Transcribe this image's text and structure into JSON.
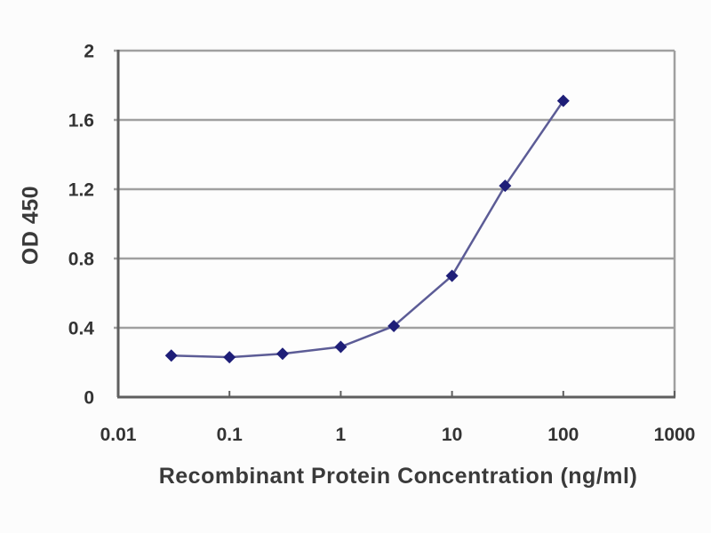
{
  "page": {
    "background": "#fcfcfc"
  },
  "chart_data": {
    "type": "line",
    "title": "",
    "xlabel": "Recombinant Protein Concentration (ng/ml)",
    "ylabel": "OD 450",
    "x_scale": "log",
    "y_scale": "linear",
    "xlim": [
      0.01,
      1000
    ],
    "ylim": [
      0,
      2
    ],
    "x": [
      0.03,
      0.1,
      0.3,
      1,
      3,
      10,
      30,
      100
    ],
    "y": [
      0.24,
      0.23,
      0.25,
      0.29,
      0.41,
      0.7,
      1.22,
      1.71
    ],
    "x_ticks": [
      {
        "value": 0.01,
        "label": "0.01"
      },
      {
        "value": 0.1,
        "label": "0.1"
      },
      {
        "value": 1,
        "label": "1"
      },
      {
        "value": 10,
        "label": "10"
      },
      {
        "value": 100,
        "label": "100"
      },
      {
        "value": 1000,
        "label": "1000"
      }
    ],
    "y_ticks": [
      {
        "value": 0,
        "label": "0"
      },
      {
        "value": 0.4,
        "label": "0.4"
      },
      {
        "value": 0.8,
        "label": "0.8"
      },
      {
        "value": 1.2,
        "label": "1.2"
      },
      {
        "value": 1.6,
        "label": "1.6"
      },
      {
        "value": 2,
        "label": "2"
      }
    ],
    "grid": "horizontal-only",
    "legend": "none",
    "marker_shape": "diamond",
    "colors": {
      "line": "#5c5c96",
      "marker": "#1e1e78",
      "gridline": "#a0a0a0",
      "axis": "#5f5f5f",
      "tick_text": "#333333",
      "plot_background": "#fdfdfd"
    }
  }
}
